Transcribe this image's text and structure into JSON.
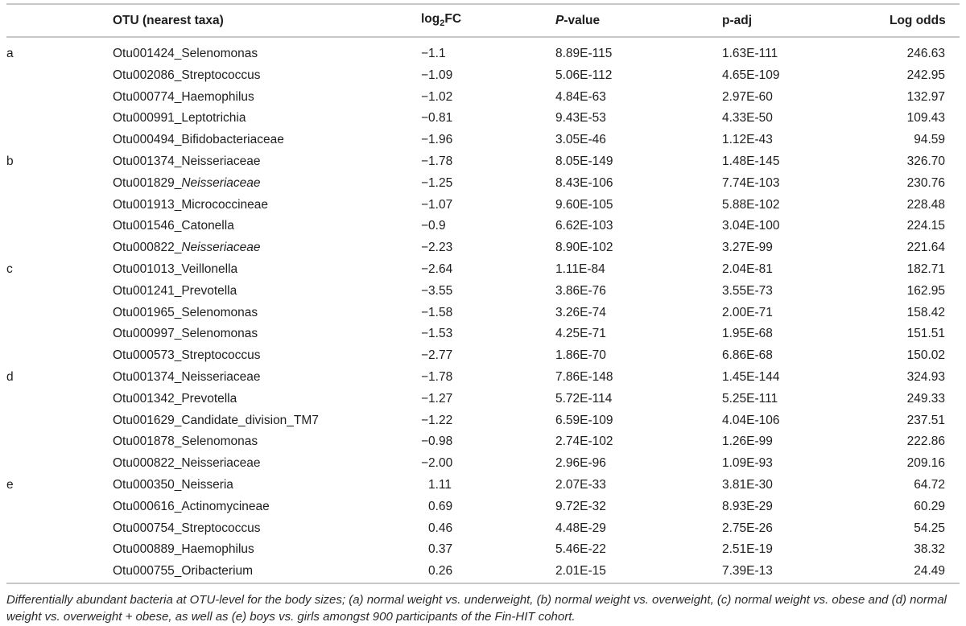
{
  "header": {
    "group": "",
    "otu": "OTU (nearest taxa)",
    "log2fc_pre": "log",
    "log2fc_sub": "2",
    "log2fc_post": "FC",
    "pvalue_italic": "P",
    "pvalue_rest": "-value",
    "padj": "p-adj",
    "logodds": "Log odds"
  },
  "table": {
    "groups": [
      {
        "label": "a",
        "rows": [
          {
            "otu": "Otu001424_Selenomonas",
            "otu_italic": "",
            "log2fc": "−1.1",
            "pvalue": "8.89E-115",
            "padj": "1.63E-111",
            "logodds": "246.63"
          },
          {
            "otu": "Otu002086_Streptococcus",
            "otu_italic": "",
            "log2fc": "−1.09",
            "pvalue": "5.06E-112",
            "padj": "4.65E-109",
            "logodds": "242.95"
          },
          {
            "otu": "Otu000774_Haemophilus",
            "otu_italic": "",
            "log2fc": "−1.02",
            "pvalue": "4.84E-63",
            "padj": "2.97E-60",
            "logodds": "132.97"
          },
          {
            "otu": "Otu000991_Leptotrichia",
            "otu_italic": "",
            "log2fc": "−0.81",
            "pvalue": "9.43E-53",
            "padj": "4.33E-50",
            "logodds": "109.43"
          },
          {
            "otu": "Otu000494_Bifidobacteriaceae",
            "otu_italic": "",
            "log2fc": "−1.96",
            "pvalue": "3.05E-46",
            "padj": "1.12E-43",
            "logodds": "94.59"
          }
        ]
      },
      {
        "label": "b",
        "rows": [
          {
            "otu": "Otu001374_Neisseriaceae",
            "otu_italic": "",
            "log2fc": "−1.78",
            "pvalue": "8.05E-149",
            "padj": "1.48E-145",
            "logodds": "326.70"
          },
          {
            "otu": "Otu001829_",
            "otu_italic": "Neisseriaceae",
            "log2fc": "−1.25",
            "pvalue": "8.43E-106",
            "padj": "7.74E-103",
            "logodds": "230.76"
          },
          {
            "otu": "Otu001913_Micrococcineae",
            "otu_italic": "",
            "log2fc": "−1.07",
            "pvalue": "9.60E-105",
            "padj": "5.88E-102",
            "logodds": "228.48"
          },
          {
            "otu": "Otu001546_Catonella",
            "otu_italic": "",
            "log2fc": "−0.9",
            "pvalue": "6.62E-103",
            "padj": "3.04E-100",
            "logodds": "224.15"
          },
          {
            "otu": "Otu000822_",
            "otu_italic": "Neisseriaceae",
            "log2fc": "−2.23",
            "pvalue": "8.90E-102",
            "padj": "3.27E-99",
            "logodds": "221.64"
          }
        ]
      },
      {
        "label": "c",
        "rows": [
          {
            "otu": "Otu001013_Veillonella",
            "otu_italic": "",
            "log2fc": "−2.64",
            "pvalue": "1.11E-84",
            "padj": "2.04E-81",
            "logodds": "182.71"
          },
          {
            "otu": "Otu001241_Prevotella",
            "otu_italic": "",
            "log2fc": "−3.55",
            "pvalue": "3.86E-76",
            "padj": "3.55E-73",
            "logodds": "162.95"
          },
          {
            "otu": "Otu001965_Selenomonas",
            "otu_italic": "",
            "log2fc": "−1.58",
            "pvalue": "3.26E-74",
            "padj": "2.00E-71",
            "logodds": "158.42"
          },
          {
            "otu": "Otu000997_Selenomonas",
            "otu_italic": "",
            "log2fc": "−1.53",
            "pvalue": "4.25E-71",
            "padj": "1.95E-68",
            "logodds": "151.51"
          },
          {
            "otu": "Otu000573_Streptococcus",
            "otu_italic": "",
            "log2fc": "−2.77",
            "pvalue": "1.86E-70",
            "padj": "6.86E-68",
            "logodds": "150.02"
          }
        ]
      },
      {
        "label": "d",
        "rows": [
          {
            "otu": "Otu001374_Neisseriaceae",
            "otu_italic": "",
            "log2fc": "−1.78",
            "pvalue": "7.86E-148",
            "padj": "1.45E-144",
            "logodds": "324.93"
          },
          {
            "otu": "Otu001342_Prevotella",
            "otu_italic": "",
            "log2fc": "−1.27",
            "pvalue": "5.72E-114",
            "padj": "5.25E-111",
            "logodds": "249.33"
          },
          {
            "otu": "Otu001629_Candidate_division_TM7",
            "otu_italic": "",
            "log2fc": "−1.22",
            "pvalue": "6.59E-109",
            "padj": "4.04E-106",
            "logodds": "237.51"
          },
          {
            "otu": "Otu001878_Selenomonas",
            "otu_italic": "",
            "log2fc": "−0.98",
            "pvalue": "2.74E-102",
            "padj": "1.26E-99",
            "logodds": "222.86"
          },
          {
            "otu": "Otu000822_Neisseriaceae",
            "otu_italic": "",
            "log2fc": "−2.00",
            "pvalue": "2.96E-96",
            "padj": "1.09E-93",
            "logodds": "209.16"
          }
        ]
      },
      {
        "label": "e",
        "rows": [
          {
            "otu": "Otu000350_Neisseria",
            "otu_italic": "",
            "log2fc": "1.11",
            "pvalue": "2.07E-33",
            "padj": "3.81E-30",
            "logodds": "64.72"
          },
          {
            "otu": "Otu000616_Actinomycineae",
            "otu_italic": "",
            "log2fc": "0.69",
            "pvalue": "9.72E-32",
            "padj": "8.93E-29",
            "logodds": "60.29"
          },
          {
            "otu": "Otu000754_Streptococcus",
            "otu_italic": "",
            "log2fc": "0.46",
            "pvalue": "4.48E-29",
            "padj": "2.75E-26",
            "logodds": "54.25"
          },
          {
            "otu": "Otu000889_Haemophilus",
            "otu_italic": "",
            "log2fc": "0.37",
            "pvalue": "5.46E-22",
            "padj": "2.51E-19",
            "logodds": "38.32"
          },
          {
            "otu": "Otu000755_Oribacterium",
            "otu_italic": "",
            "log2fc": "0.26",
            "pvalue": "2.01E-15",
            "padj": "7.39E-13",
            "logodds": "24.49"
          }
        ]
      }
    ]
  },
  "caption": "Differentially abundant bacteria at OTU-level for the body sizes; (a) normal weight vs. underweight, (b) normal weight vs. overweight, (c) normal weight vs. obese and (d) normal weight vs. overweight + obese, as well as (e) boys vs. girls amongst 900 participants of the Fin-HIT cohort.",
  "colors": {
    "rule": "#c8c8c8",
    "text": "#1e1e1e",
    "caption": "#2b2b2b"
  }
}
